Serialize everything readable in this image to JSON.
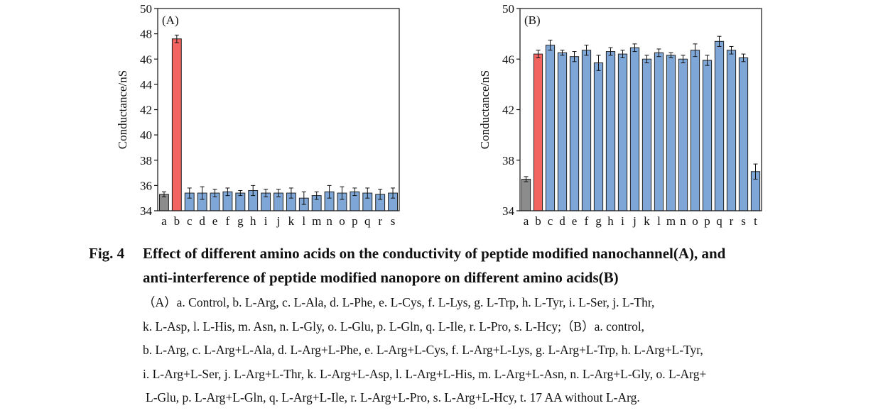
{
  "figure": {
    "number": "Fig. 4",
    "title_line1": "Effect of different amino acids on the conductivity of peptide modified nanochannel(A), and",
    "title_line2": "anti-interference of peptide modified nanopore on different amino acids(B)",
    "caption_lines": [
      "（A）a. Control, b. L-Arg, c. L-Ala, d. L-Phe, e. L-Cys, f. L-Lys, g. L-Trp, h. L-Tyr, i. L-Ser, j. L-Thr,",
      "k. L-Asp, l. L-His, m. Asn, n. L-Gly, o. L-Glu, p. L-Gln, q. L-Ile, r. L-Pro, s. L-Hcy;（B）a. control,",
      "b. L-Arg, c. L-Arg+L-Ala, d. L-Arg+L-Phe, e. L-Arg+L-Cys, f. L-Arg+L-Lys, g. L-Arg+L-Trp, h. L-Arg+L-Tyr,",
      "i. L-Arg+L-Ser, j. L-Arg+L-Thr, k. L-Arg+L-Asp, l. L-Arg+L-His, m. L-Arg+L-Asn, n. L-Arg+L-Gly, o. L-Arg+",
      "L-Glu, p. L-Arg+L-Gln, q. L-Arg+L-Ile, r. L-Arg+L-Pro, s. L-Arg+L-Hcy, t. 17 AA without L-Arg."
    ]
  },
  "colors": {
    "control": "#8c8c8c",
    "target": "#f2645f",
    "other": "#7ea6d6",
    "edge": "#222222"
  },
  "chart_data": [
    {
      "type": "bar",
      "panel_label": "(A)",
      "ylabel": "Conductance/nS",
      "xlabel": "",
      "ylim": [
        34,
        50
      ],
      "yticks": [
        34,
        36,
        38,
        40,
        42,
        44,
        46,
        48,
        50
      ],
      "categories": [
        "a",
        "b",
        "c",
        "d",
        "e",
        "f",
        "g",
        "h",
        "i",
        "j",
        "k",
        "l",
        "m",
        "n",
        "o",
        "p",
        "q",
        "r",
        "s"
      ],
      "values": [
        35.3,
        47.6,
        35.4,
        35.4,
        35.4,
        35.5,
        35.4,
        35.6,
        35.4,
        35.4,
        35.4,
        35.0,
        35.2,
        35.5,
        35.4,
        35.5,
        35.4,
        35.3,
        35.4
      ],
      "errors": [
        0.2,
        0.3,
        0.4,
        0.5,
        0.3,
        0.3,
        0.2,
        0.4,
        0.3,
        0.3,
        0.4,
        0.5,
        0.3,
        0.5,
        0.5,
        0.3,
        0.4,
        0.4,
        0.4
      ],
      "grid": false
    },
    {
      "type": "bar",
      "panel_label": "(B)",
      "ylabel": "Conductance/nS",
      "xlabel": "",
      "ylim": [
        34,
        50
      ],
      "yticks": [
        34,
        38,
        42,
        46,
        50
      ],
      "categories": [
        "a",
        "b",
        "c",
        "d",
        "e",
        "f",
        "g",
        "h",
        "i",
        "j",
        "k",
        "l",
        "m",
        "n",
        "o",
        "p",
        "q",
        "r",
        "s",
        "t"
      ],
      "values": [
        36.5,
        46.4,
        47.1,
        46.5,
        46.2,
        46.7,
        45.7,
        46.6,
        46.4,
        46.9,
        46.0,
        46.5,
        46.3,
        46.0,
        46.7,
        45.9,
        47.4,
        46.7,
        46.1,
        37.1
      ],
      "errors": [
        0.2,
        0.3,
        0.4,
        0.2,
        0.4,
        0.4,
        0.6,
        0.3,
        0.3,
        0.3,
        0.3,
        0.3,
        0.2,
        0.3,
        0.5,
        0.4,
        0.4,
        0.3,
        0.3,
        0.6
      ],
      "grid": false
    }
  ]
}
